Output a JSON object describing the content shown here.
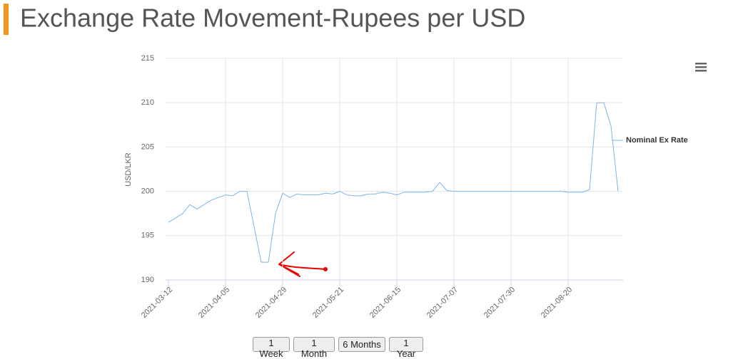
{
  "chart_data": {
    "type": "line",
    "title": "Exchange Rate Movement-Rupees per USD",
    "y_label": "USD/LKR",
    "categories": [
      "2021-03-12",
      null,
      null,
      null,
      null,
      null,
      null,
      null,
      "2021-04-05",
      null,
      null,
      null,
      null,
      null,
      null,
      null,
      "2021-04-29",
      null,
      null,
      null,
      null,
      null,
      null,
      null,
      "2021-05-21",
      null,
      null,
      null,
      null,
      null,
      null,
      null,
      "2021-06-15",
      null,
      null,
      null,
      null,
      null,
      null,
      null,
      "2021-07-07",
      null,
      null,
      null,
      null,
      null,
      null,
      null,
      "2021-07-30",
      null,
      null,
      null,
      null,
      null,
      null,
      null,
      "2021-08-20",
      null,
      null,
      null,
      null,
      null,
      null,
      null
    ],
    "series": [
      {
        "name": "Nominal Ex Rate",
        "color": "#7cb5ec",
        "values": [
          196.5,
          197.0,
          197.5,
          198.5,
          198.0,
          198.5,
          199.0,
          199.3,
          199.6,
          199.5,
          200.0,
          200.0,
          196.0,
          192.0,
          192.0,
          197.5,
          199.8,
          199.3,
          199.7,
          199.6,
          199.6,
          199.6,
          199.8,
          199.7,
          200.0,
          199.6,
          199.5,
          199.5,
          199.7,
          199.7,
          199.9,
          199.8,
          199.6,
          199.9,
          199.9,
          199.9,
          199.9,
          200.0,
          201.0,
          200.1,
          200.0,
          200.0,
          200.0,
          200.0,
          200.0,
          200.0,
          200.0,
          200.0,
          200.0,
          200.0,
          200.0,
          200.0,
          200.0,
          200.0,
          200.0,
          200.0,
          199.9,
          199.9,
          199.9,
          200.2,
          210.0,
          210.0,
          207.4,
          200.0
        ]
      }
    ],
    "ylim": [
      190,
      215
    ],
    "yticks": [
      190,
      195,
      200,
      205,
      210,
      215
    ],
    "grid": true,
    "legend": "right",
    "buttons": [
      "1 Week",
      "1 Month",
      "6 Months",
      "1 Year"
    ]
  }
}
